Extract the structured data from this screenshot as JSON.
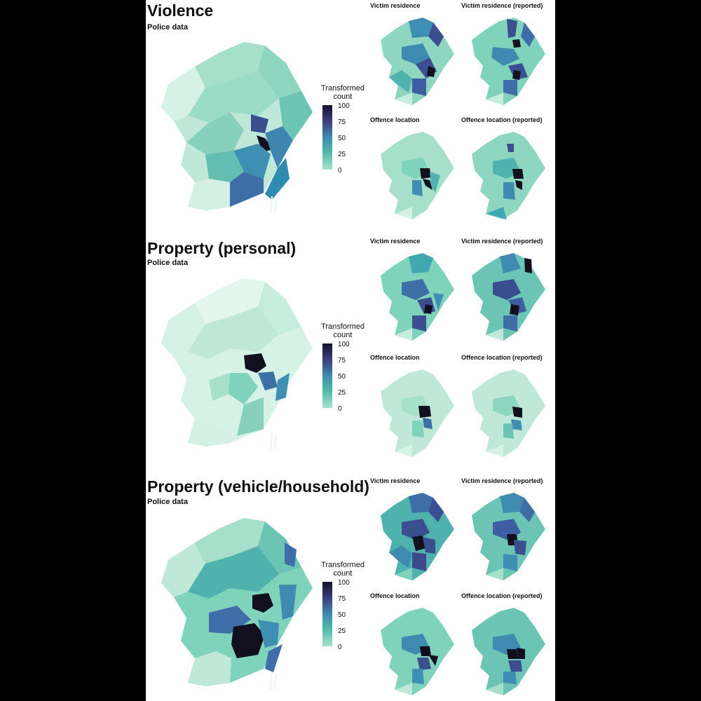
{
  "legend": {
    "title_line1": "Transformed",
    "title_line2": "count",
    "ticks": [
      "100",
      "75",
      "50",
      "25",
      "0"
    ]
  },
  "panel_titles": {
    "victim_residence": "Victim residence",
    "victim_residence_reported": "Victim residence (reported)",
    "offence_location": "Offence location",
    "offence_location_reported": "Offence location (reported)"
  },
  "sections": [
    {
      "title": "Violence",
      "subtitle": "Police data"
    },
    {
      "title": "Property (personal)",
      "subtitle": "Police data"
    },
    {
      "title": "Property (vehicle/household)",
      "subtitle": "Police data"
    }
  ],
  "colors": {
    "scale_0": "#cdeee0",
    "scale_25": "#7fd3bb",
    "scale_50": "#3fa8b0",
    "scale_75": "#3b4f90",
    "scale_100": "#12101f"
  }
}
